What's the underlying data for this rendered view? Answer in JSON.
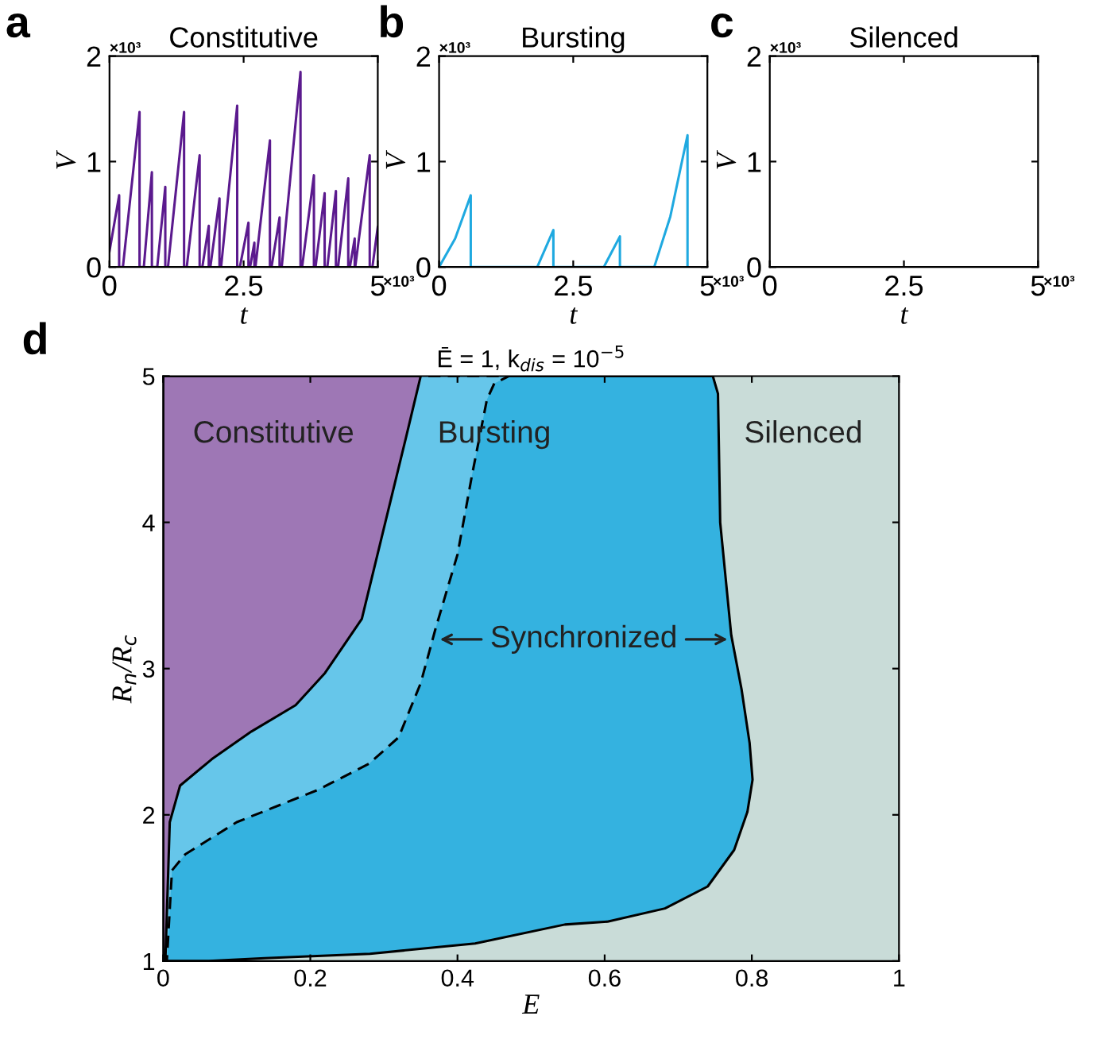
{
  "chart_data": [
    {
      "type": "line",
      "title": "Constitutive",
      "xlabel": "t",
      "ylabel": "V",
      "xlim": [
        0,
        5
      ],
      "xticks": [
        0,
        2.5,
        5
      ],
      "ylim": [
        0,
        2
      ],
      "yticks": [
        0,
        1,
        2
      ],
      "grid": false,
      "legend": false,
      "annotations": [
        "a",
        "×10³",
        "×10³"
      ],
      "series": [
        {
          "color": "#5b1a8e",
          "x": [
            0,
            0.18,
            0.18,
            0.25,
            0.56,
            0.56,
            0.64,
            0.79,
            0.79,
            0.89,
            1.04,
            1.04,
            1.09,
            1.39,
            1.39,
            1.44,
            1.68,
            1.68,
            1.73,
            1.85,
            1.85,
            1.88,
            2.05,
            2.05,
            2.08,
            2.38,
            2.38,
            2.43,
            2.59,
            2.59,
            2.62,
            2.7,
            2.7,
            2.72,
            2.99,
            2.99,
            3.02,
            3.17,
            3.17,
            3.21,
            3.56,
            3.56,
            3.59,
            3.81,
            3.81,
            3.84,
            4.01,
            4.01,
            4.06,
            4.22,
            4.22,
            4.26,
            4.45,
            4.45,
            4.48,
            4.57,
            4.57,
            4.58,
            4.85,
            4.85,
            4.9,
            5
          ],
          "values": [
            0.15,
            0.68,
            0,
            0,
            1.47,
            0,
            0,
            0.9,
            0,
            0,
            0.76,
            0,
            0,
            1.47,
            0,
            0,
            1.06,
            0,
            0,
            0.39,
            0,
            0,
            0.65,
            0,
            0,
            1.53,
            0,
            0,
            0.42,
            0,
            0,
            0.23,
            0,
            0,
            1.2,
            0,
            0,
            0.47,
            0,
            0,
            1.85,
            0,
            0,
            0.87,
            0,
            0,
            0.7,
            0,
            0,
            0.72,
            0,
            0,
            0.84,
            0,
            0,
            0.27,
            0,
            0,
            1.06,
            0,
            0,
            0.38
          ]
        }
      ]
    },
    {
      "type": "line",
      "title": "Bursting",
      "xlabel": "t",
      "ylabel": "V",
      "xlim": [
        0,
        5
      ],
      "xticks": [
        0,
        2.5,
        5
      ],
      "ylim": [
        0,
        2
      ],
      "yticks": [
        0,
        1,
        2
      ],
      "grid": false,
      "legend": false,
      "annotations": [
        "b",
        "×10³",
        "×10³"
      ],
      "series": [
        {
          "color": "#1fa9e0",
          "x": [
            0,
            0.3,
            0.59,
            0.59,
            1.83,
            2.13,
            2.13,
            3.07,
            3.37,
            3.37,
            4.01,
            4.31,
            4.63,
            4.63
          ],
          "values": [
            0,
            0.27,
            0.68,
            0,
            0,
            0.35,
            0,
            0,
            0.29,
            0,
            0,
            0.48,
            1.25,
            0
          ]
        }
      ]
    },
    {
      "type": "line",
      "title": "Silenced",
      "xlabel": "t",
      "ylabel": "V",
      "xlim": [
        0,
        5
      ],
      "xticks": [
        0,
        2.5,
        5
      ],
      "ylim": [
        0,
        2
      ],
      "yticks": [
        0,
        1,
        2
      ],
      "grid": false,
      "legend": false,
      "annotations": [
        "c",
        "×10³",
        "×10³"
      ]
    },
    {
      "type": "area",
      "title": "Ē = 1, k$_{dis}$ = 10$^{−5}$",
      "xlabel": "E",
      "ylabel": "R$_{n}$/R$_{c}$",
      "xlim": [
        0,
        1
      ],
      "xticks": [
        0,
        0.2,
        0.4,
        0.6,
        0.8,
        1
      ],
      "ylim": [
        1,
        5
      ],
      "yticks": [
        1,
        2,
        3,
        4,
        5
      ],
      "grid": false,
      "legend": false,
      "bands": [
        {
          "axis": "y",
          "from": 1,
          "to": 5,
          "color": "#c9dcd8"
        }
      ],
      "annotations": [
        "d",
        "Constitutive",
        "Bursting",
        "Silenced",
        {
          "text": "Synchronized",
          "x": 0.37,
          "y": 3.2
        }
      ],
      "series": [
        {
          "color": "#34b2e0",
          "line_style": "solid",
          "x": [
            0,
            0.747,
            0.754,
            0.757,
            0.772,
            0.786,
            0.797,
            0.801,
            0.794,
            0.776,
            0.74,
            0.682,
            0.604,
            0.546,
            0.424,
            0.281,
            0.138,
            0.062,
            0
          ],
          "values": [
            5,
            5,
            4.88,
            4.0,
            3.23,
            2.86,
            2.49,
            2.24,
            2.02,
            1.76,
            1.51,
            1.36,
            1.27,
            1.25,
            1.12,
            1.05,
            1.02,
            1.0,
            1.0
          ]
        },
        {
          "color": "#66c6ea",
          "line_style": "dashed",
          "x": [
            0,
            0,
            0.005,
            0.012,
            0.03,
            0.1,
            0.21,
            0.28,
            0.32,
            0.35,
            0.37,
            0.4,
            0.42,
            0.44,
            0.45,
            0.47
          ],
          "values": [
            5,
            1,
            1,
            1.62,
            1.73,
            1.95,
            2.17,
            2.35,
            2.53,
            2.9,
            3.27,
            3.78,
            4.33,
            4.84,
            4.95,
            5
          ]
        },
        {
          "color": "#9e77b5",
          "line_style": "solid",
          "x": [
            0,
            0,
            0.003,
            0.009,
            0.023,
            0.066,
            0.12,
            0.18,
            0.22,
            0.27,
            0.3,
            0.33,
            0.35
          ],
          "values": [
            5,
            1,
            1.0,
            1.95,
            2.2,
            2.38,
            2.57,
            2.75,
            2.97,
            3.34,
            3.96,
            4.58,
            5
          ]
        }
      ]
    }
  ]
}
